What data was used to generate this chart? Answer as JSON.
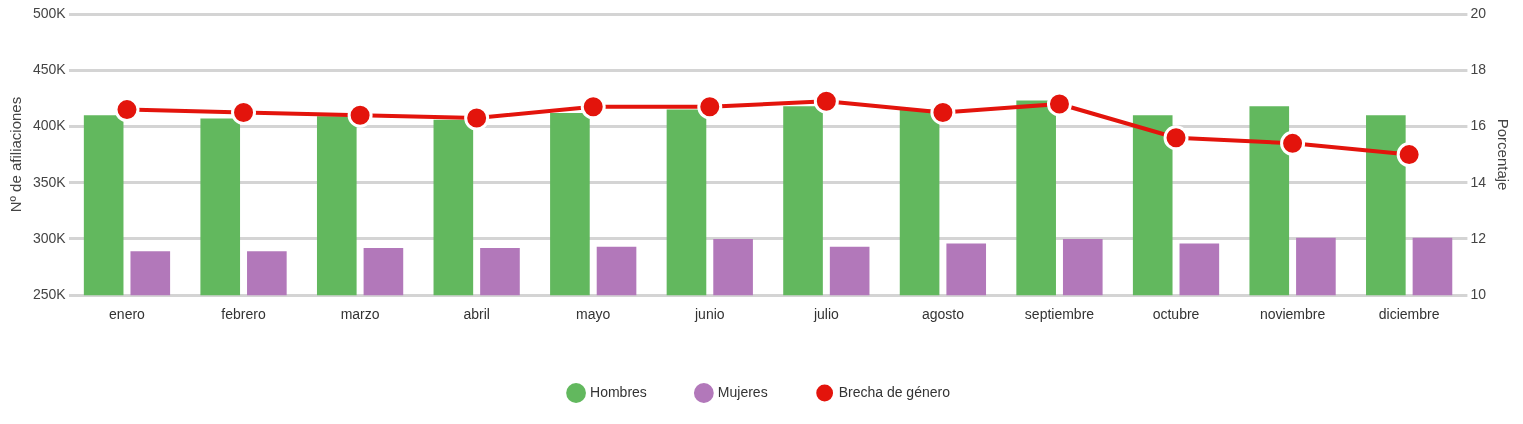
{
  "chart_data": {
    "type": "bar",
    "categories": [
      "enero",
      "febrero",
      "marzo",
      "abril",
      "mayo",
      "junio",
      "julio",
      "agosto",
      "septiembre",
      "octubre",
      "noviembre",
      "diciembre"
    ],
    "ylabel": "Nº de afiliaciones",
    "y2label": "Porcentaje",
    "ylim": [
      250000,
      500000
    ],
    "yticks": [
      {
        "value": 250000,
        "label": "250K"
      },
      {
        "value": 300000,
        "label": "300K"
      },
      {
        "value": 350000,
        "label": "350K"
      },
      {
        "value": 400000,
        "label": "400K"
      },
      {
        "value": 450000,
        "label": "450K"
      },
      {
        "value": 500000,
        "label": "500K"
      }
    ],
    "y2lim": [
      10,
      20
    ],
    "y2ticks": [
      10,
      12,
      14,
      16,
      18,
      20
    ],
    "grid": "y",
    "legend": "bottom",
    "marker": "circle",
    "line_style": "solid",
    "series": [
      {
        "name": "Hombres",
        "color": "#62b85e",
        "values": [
          410000,
          407000,
          409000,
          406000,
          412000,
          415000,
          418000,
          415000,
          423000,
          410000,
          418000,
          410000
        ]
      },
      {
        "name": "Mujeres",
        "color": "#b278ba",
        "values": [
          289000,
          289000,
          292000,
          292000,
          293000,
          300000,
          293000,
          296000,
          300000,
          296000,
          301000,
          301000
        ]
      },
      {
        "name": "Brecha de género",
        "type": "line",
        "axis": "y2",
        "color": "#e3140c",
        "values": [
          16.6,
          16.5,
          16.4,
          16.3,
          16.7,
          16.7,
          16.9,
          16.5,
          16.8,
          15.6,
          15.4,
          15.0
        ]
      }
    ]
  }
}
